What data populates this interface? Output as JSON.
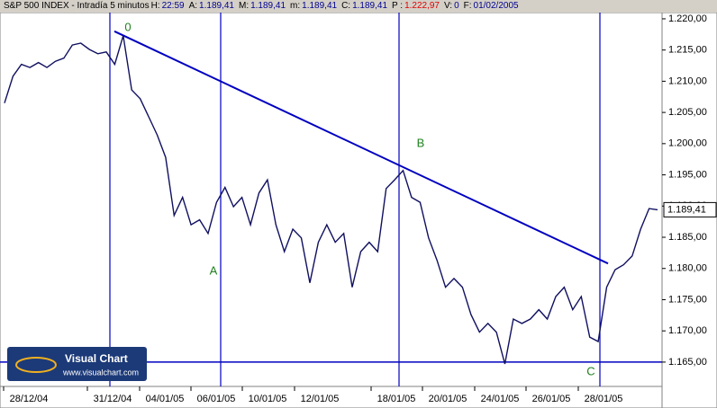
{
  "chart_data": {
    "type": "line",
    "header": {
      "title": "S&P 500 INDEX - Intradía 5 minutos",
      "fields": [
        {
          "label": "H:",
          "value": "22:59"
        },
        {
          "label": "A:",
          "value": "1.189,41"
        },
        {
          "label": "M:",
          "value": "1.189,41"
        },
        {
          "label": "m:",
          "value": "1.189,41"
        },
        {
          "label": "C:",
          "value": "1.189,41"
        },
        {
          "label": "P :",
          "value": "1.222,97",
          "color": "#e00000"
        },
        {
          "label": "V:",
          "value": "0"
        },
        {
          "label": "F:",
          "value": "01/02/2005"
        }
      ]
    },
    "series": [
      {
        "color": "#101060",
        "values": [
          1206.5,
          1210.8,
          1212.7,
          1212.2,
          1213.0,
          1212.2,
          1213.2,
          1213.7,
          1215.8,
          1216.1,
          1215.1,
          1214.4,
          1214.7,
          1212.7,
          1217.3,
          1208.6,
          1207.2,
          1204.3,
          1201.4,
          1197.8,
          1188.5,
          1191.4,
          1187.0,
          1187.8,
          1185.6,
          1190.6,
          1193.0,
          1189.9,
          1191.4,
          1187.0,
          1192.1,
          1194.2,
          1187.0,
          1182.7,
          1186.3,
          1184.9,
          1177.7,
          1184.2,
          1187.0,
          1184.2,
          1185.6,
          1177.0,
          1182.7,
          1184.2,
          1182.7,
          1192.8,
          1194.2,
          1195.7,
          1191.4,
          1190.6,
          1184.9,
          1181.3,
          1177.0,
          1178.4,
          1177.0,
          1172.6,
          1169.8,
          1171.2,
          1169.8,
          1164.7,
          1171.9,
          1171.2,
          1171.9,
          1173.4,
          1171.9,
          1175.5,
          1177.0,
          1173.4,
          1175.5,
          1169.0,
          1168.3,
          1177.0,
          1179.8,
          1180.6,
          1182.0,
          1186.3,
          1189.6,
          1189.41
        ]
      }
    ],
    "x_labels": [
      "28/12/04",
      "31/12/04",
      "04/01/05",
      "06/01/05",
      "10/01/05",
      "12/01/05",
      "18/01/05",
      "20/01/05",
      "24/01/05",
      "26/01/05",
      "28/01/05"
    ],
    "ylim": [
      1161.1,
      1221.0
    ],
    "yticks": [
      {
        "value": 1220,
        "label": "1.220,00"
      },
      {
        "value": 1215,
        "label": "1.215,00"
      },
      {
        "value": 1210,
        "label": "1.210,00"
      },
      {
        "value": 1205,
        "label": "1.205,00"
      },
      {
        "value": 1200,
        "label": "1.200,00"
      },
      {
        "value": 1195,
        "label": "1.195,00"
      },
      {
        "value": 1190,
        "label": "1.190,00"
      },
      {
        "value": 1185,
        "label": "1.185,00"
      },
      {
        "value": 1180,
        "label": "1.180,00"
      },
      {
        "value": 1175,
        "label": "1.175,00"
      },
      {
        "value": 1170,
        "label": "1.170,00"
      },
      {
        "value": 1165,
        "label": "1.165,00"
      }
    ],
    "last_price": {
      "value": 1189.41,
      "label": "1.189,41"
    },
    "trendline": [
      1218.0,
      1180.8
    ],
    "support_level": 1165,
    "annotations": [
      "0",
      "A",
      "B",
      "C"
    ],
    "logo": {
      "name": "Visual Chart",
      "url": "www.visualchart.com"
    }
  }
}
